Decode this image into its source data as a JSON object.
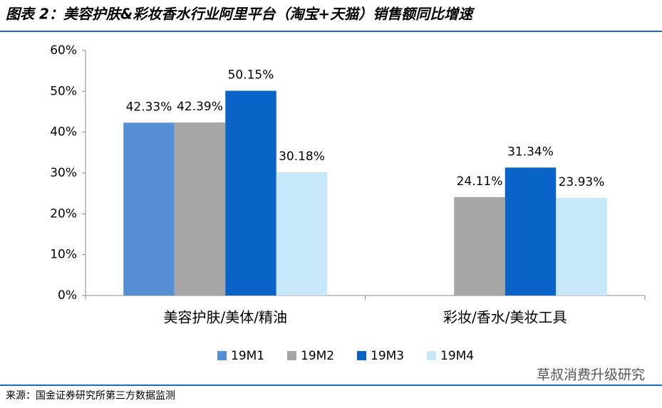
{
  "header": {
    "title": "图表 2：美容护肤&彩妆香水行业阿里平台（淘宝+天猫）销售额同比增速"
  },
  "chart_data": {
    "type": "bar",
    "categories": [
      "美容护肤/美体/精油",
      "彩妆/香水/美妆工具"
    ],
    "series": [
      {
        "name": "19M1",
        "color": "#558ed5",
        "values": [
          42.33,
          null
        ],
        "value_labels": [
          "42.33%",
          null
        ]
      },
      {
        "name": "19M2",
        "color": "#a6a6a6",
        "values": [
          42.39,
          24.11
        ],
        "value_labels": [
          "42.39%",
          "24.11%"
        ]
      },
      {
        "name": "19M3",
        "color": "#0a64c8",
        "values": [
          50.15,
          31.34
        ],
        "value_labels": [
          "50.15%",
          "31.34%"
        ]
      },
      {
        "name": "19M4",
        "color": "#c6e8fa",
        "values": [
          30.18,
          23.93
        ],
        "value_labels": [
          "30.18%",
          "23.93%"
        ]
      }
    ],
    "ylim": [
      0,
      60
    ],
    "yticks": [
      {
        "value": 0,
        "label": "0%"
      },
      {
        "value": 10,
        "label": "10%"
      },
      {
        "value": 20,
        "label": "20%"
      },
      {
        "value": 30,
        "label": "30%"
      },
      {
        "value": 40,
        "label": "40%"
      },
      {
        "value": 50,
        "label": "50%"
      },
      {
        "value": 60,
        "label": "60%"
      }
    ],
    "legend": "bottom"
  },
  "footer": {
    "source": "来源：国金证券研究所第三方数据监测",
    "watermark": "草叔消费升级研究"
  }
}
